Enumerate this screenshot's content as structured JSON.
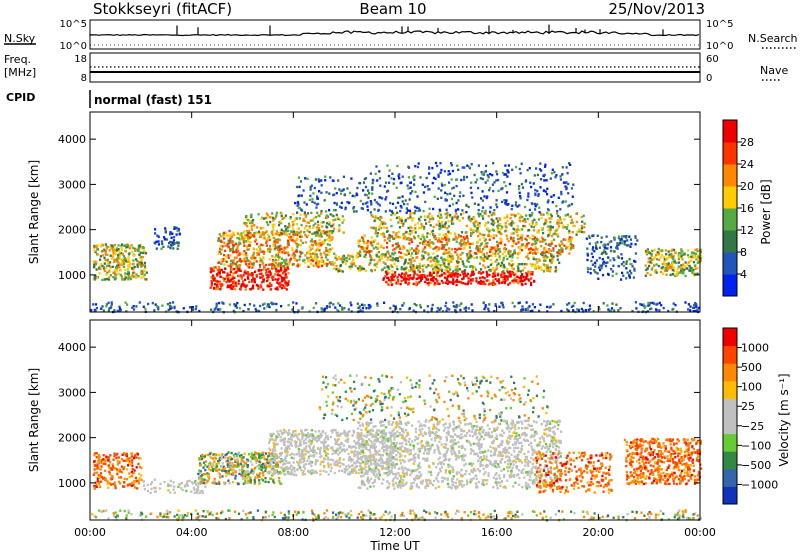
{
  "header": {
    "station": "Stokkseyri (fitACF)",
    "beam": "Beam 10",
    "date": "25/Nov/2013"
  },
  "nsky_panel": {
    "label": "N.Sky",
    "right_label": "N.Search",
    "left_ticks": [
      "10^5",
      "10^0"
    ],
    "right_ticks": [
      "10^5",
      "10^0"
    ]
  },
  "freq_panel": {
    "label_line1": "Freq.",
    "label_line2": "[MHz]",
    "right_label": "Nave",
    "left_ticks": [
      "18",
      "8"
    ],
    "right_ticks": [
      "60",
      "0"
    ]
  },
  "cpid_panel": {
    "label": "CPID",
    "mode": "normal (fast) 151"
  },
  "x_axis": {
    "label": "Time UT",
    "ticks": [
      "00:00",
      "04:00",
      "08:00",
      "12:00",
      "16:00",
      "20:00",
      "00:00"
    ]
  },
  "colors": {
    "power_scale": [
      "#0022ee",
      "#2255bb",
      "#337744",
      "#55aa44",
      "#ffcc00",
      "#ff8800",
      "#ff3300",
      "#ee0000"
    ],
    "velocity_scale": [
      "#ee0000",
      "#ff4400",
      "#ff8800",
      "#ffbb00",
      "#c0c0c0",
      "#c0c0c0",
      "#66cc33",
      "#338844",
      "#3366aa",
      "#1133bb"
    ]
  },
  "chart_data": [
    {
      "type": "heatmap",
      "title": "",
      "xlabel": "Time UT",
      "ylabel": "Slant Range [km]",
      "xlim": [
        "00:00",
        "24:00"
      ],
      "ylim": [
        180,
        4600
      ],
      "yticks": [
        "1000",
        "2000",
        "3000",
        "4000"
      ],
      "colorbar_label": "Power [dB]",
      "colorbar_ticks": [
        "4",
        "8",
        "12",
        "16",
        "20",
        "24",
        "28"
      ],
      "colorbar_range": [
        0,
        32
      ]
    },
    {
      "type": "heatmap",
      "title": "",
      "xlabel": "Time UT",
      "ylabel": "Slant Range [km]",
      "xlim": [
        "00:00",
        "24:00"
      ],
      "ylim": [
        180,
        4600
      ],
      "yticks": [
        "1000",
        "2000",
        "3000",
        "4000"
      ],
      "colorbar_label": "Velocity [m s⁻¹]",
      "colorbar_ticks": [
        "1000",
        "500",
        "100",
        "25",
        "−25",
        "−100",
        "−500",
        "−1000"
      ]
    }
  ]
}
